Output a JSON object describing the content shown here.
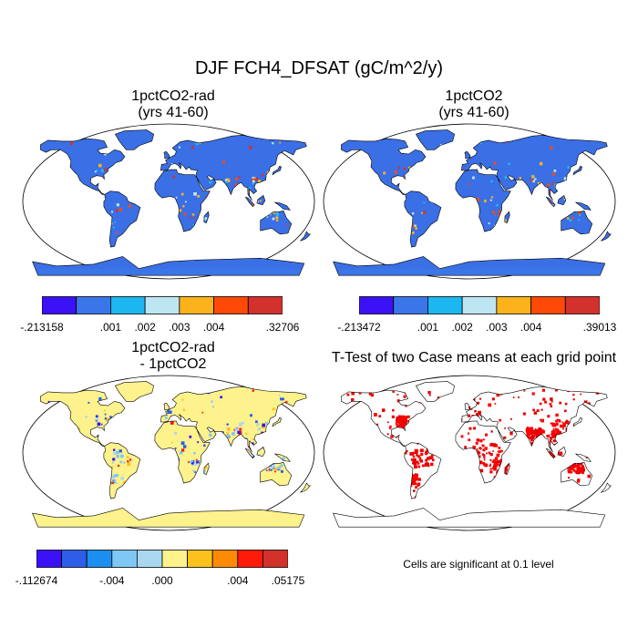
{
  "title": "DJF FCH4_DFSAT (gC/m^2/y)",
  "panels": [
    {
      "title_line1": "1pctCO2-rad",
      "title_line2": "(yrs 41-60)",
      "fill": "#3a6fe6",
      "mode": "field"
    },
    {
      "title_line1": "1pctCO2",
      "title_line2": "(yrs 41-60)",
      "fill": "#3a6fe6",
      "mode": "field"
    },
    {
      "title_line1": "1pctCO2-rad",
      "title_line2": "- 1pctCO2",
      "fill": "#fdf28c",
      "mode": "diff"
    },
    {
      "title_line1": "T-Test of two Case means at each grid point",
      "title_line2": "",
      "fill": "#ffffff",
      "mode": "ttest"
    }
  ],
  "colorbars": [
    {
      "colors": [
        "#3b12f5",
        "#3b76e8",
        "#1cb7f0",
        "#bee6f2",
        "#fbb21b",
        "#ff4a07",
        "#d2322b"
      ],
      "labels": [
        "-.213158",
        ".001",
        ".002",
        ".003",
        ".004",
        ".32706"
      ],
      "label_boundary": [
        0,
        2,
        3,
        4,
        5,
        7
      ]
    },
    {
      "colors": [
        "#3b12f5",
        "#3b76e8",
        "#1cb7f0",
        "#bee6f2",
        "#fbb21b",
        "#ff4a07",
        "#d2322b"
      ],
      "labels": [
        "-.213472",
        ".001",
        ".002",
        ".003",
        ".004",
        ".39013"
      ],
      "label_boundary": [
        0,
        2,
        3,
        4,
        5,
        7
      ]
    },
    {
      "colors": [
        "#3b12f5",
        "#2e5de8",
        "#1b8ff0",
        "#7fc8f5",
        "#a9d7f0",
        "#fdf28c",
        "#fbc21b",
        "#ff8a05",
        "#ff1a0a",
        "#d2322b"
      ],
      "labels": [
        "-.112674",
        "-.004",
        ".000",
        ".004",
        ".05175"
      ],
      "label_boundary": [
        0,
        3,
        5,
        8,
        10
      ]
    }
  ],
  "sig_note": "Cells are significant at 0.1 level"
}
